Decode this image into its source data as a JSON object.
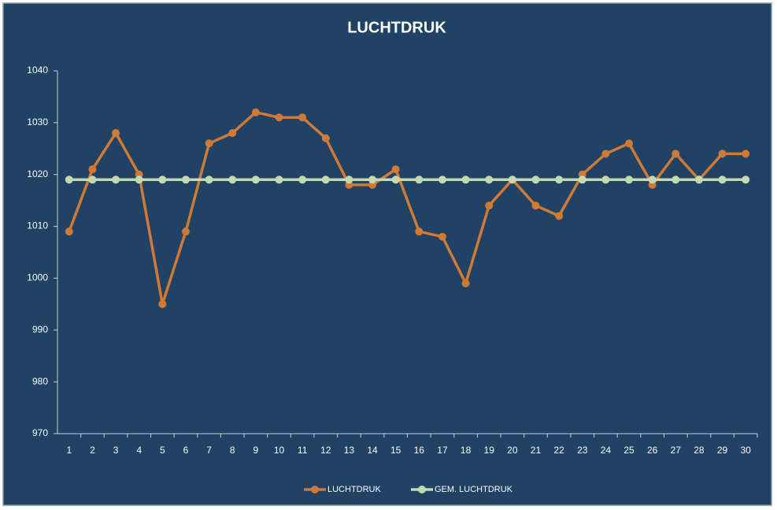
{
  "chart_data": {
    "type": "line",
    "title": "LUCHTDRUK",
    "categories": [
      "1",
      "2",
      "3",
      "4",
      "5",
      "6",
      "7",
      "8",
      "9",
      "10",
      "11",
      "12",
      "13",
      "14",
      "15",
      "16",
      "17",
      "18",
      "19",
      "20",
      "21",
      "22",
      "23",
      "24",
      "25",
      "26",
      "27",
      "28",
      "29",
      "30"
    ],
    "series": [
      {
        "name": "LUCHTDRUK",
        "color": "#d07a35",
        "values": [
          1009,
          1021,
          1028,
          1020,
          995,
          1009,
          1026,
          1028,
          1032,
          1031,
          1031,
          1027,
          1018,
          1018,
          1021,
          1009,
          1008,
          999,
          1014,
          1019,
          1014,
          1012,
          1020,
          1024,
          1026,
          1018,
          1024,
          1019,
          1024,
          1024
        ]
      },
      {
        "name": "GEM. LUCHTDRUK",
        "color": "#c5d9b0",
        "values": [
          1019,
          1019,
          1019,
          1019,
          1019,
          1019,
          1019,
          1019,
          1019,
          1019,
          1019,
          1019,
          1019,
          1019,
          1019,
          1019,
          1019,
          1019,
          1019,
          1019,
          1019,
          1019,
          1019,
          1019,
          1019,
          1019,
          1019,
          1019,
          1019,
          1019
        ]
      }
    ],
    "ylim": [
      970,
      1040
    ],
    "yticks": [
      970,
      980,
      990,
      1000,
      1010,
      1020,
      1030,
      1040
    ],
    "legend": "bottom"
  }
}
